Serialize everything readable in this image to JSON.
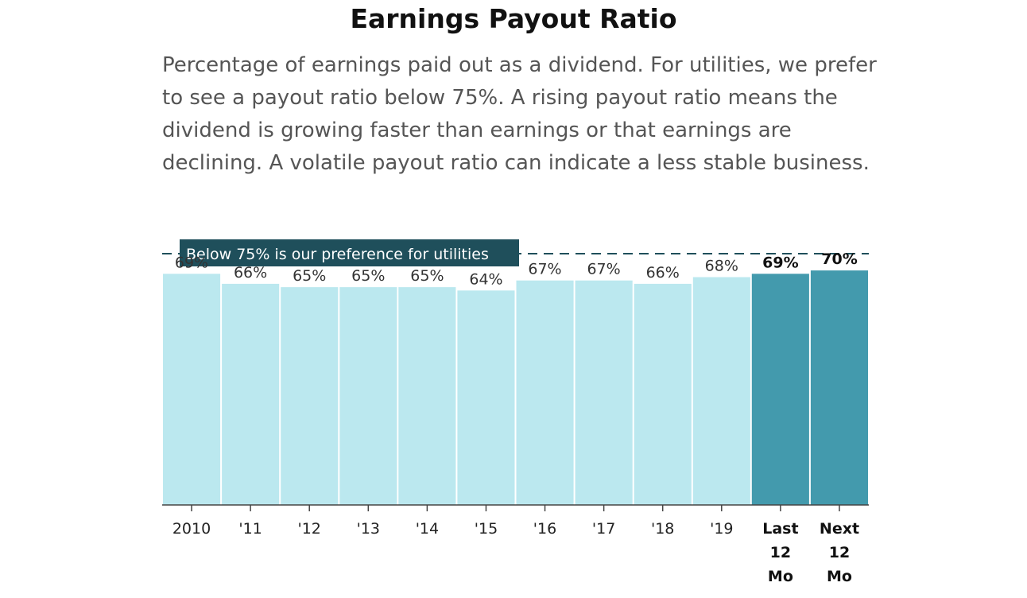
{
  "header": {
    "title": "Earnings Payout Ratio",
    "subtitle": "Percentage of earnings paid out as a dividend. For utilities, we prefer to see a payout ratio below 75%. A rising payout ratio means the dividend is growing faster than earnings or that earnings are declining. A volatile payout ratio can indicate a less stable business."
  },
  "colors": {
    "historical_bar": "#bbe8ef",
    "forecast_bar": "#439aad",
    "reference_line": "#1f4f5b",
    "reference_label_bg": "#1f4f5b",
    "axis": "#444444"
  },
  "chart_data": {
    "type": "bar",
    "categories": [
      "2010",
      "'11",
      "'12",
      "'13",
      "'14",
      "'15",
      "'16",
      "'17",
      "'18",
      "'19",
      "Last 12 Mo",
      "Next 12 Mo"
    ],
    "values": [
      69,
      66,
      65,
      65,
      65,
      64,
      67,
      67,
      66,
      68,
      69,
      70
    ],
    "value_labels": [
      "69%",
      "66%",
      "65%",
      "65%",
      "65%",
      "64%",
      "67%",
      "67%",
      "66%",
      "68%",
      "69%",
      "70%"
    ],
    "highlighted": [
      false,
      false,
      false,
      false,
      false,
      false,
      false,
      false,
      false,
      false,
      true,
      true
    ],
    "ylim": [
      0,
      75
    ],
    "reference_line": {
      "value": 75,
      "label": "Below 75% is our preference for utilities"
    },
    "grid": false,
    "legend": "none"
  }
}
